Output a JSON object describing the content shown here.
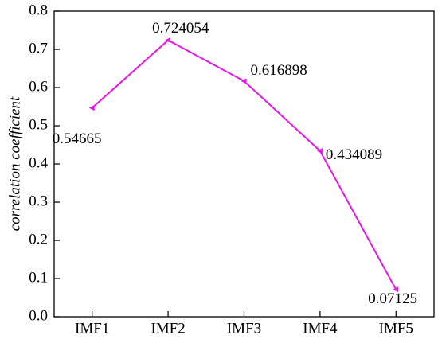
{
  "chart_data": {
    "type": "line",
    "y_label": "correlation coefficient",
    "categories": [
      "IMF1",
      "IMF2",
      "IMF3",
      "IMF4",
      "IMF5"
    ],
    "series": [
      {
        "name": "correlation coefficient",
        "color": "#e815e8",
        "values": [
          0.54665,
          0.724054,
          0.616898,
          0.434089,
          0.07125
        ]
      }
    ],
    "ylim": [
      0,
      0.8
    ],
    "yticks": [
      {
        "value": 0,
        "label": "0.0"
      },
      0.1,
      0.2,
      0.3,
      0.4,
      0.5,
      0.6,
      0.7,
      0.8
    ],
    "grid": false
  }
}
